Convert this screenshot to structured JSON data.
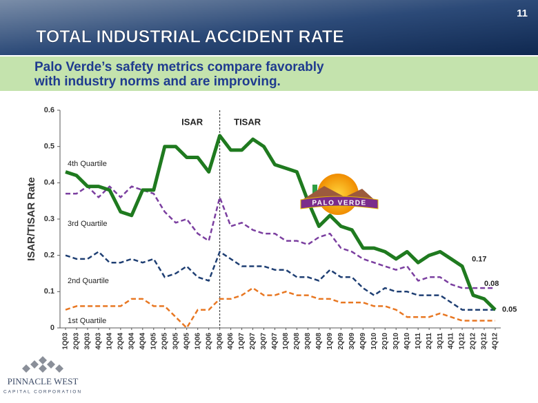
{
  "slide": {
    "number": "11",
    "title": "TOTAL INDUSTRIAL ACCIDENT RATE",
    "subtitle": [
      "Palo Verde’s safety metrics compare favorably",
      "with industry norms and are improving."
    ],
    "logo_center": "PALO VERDE",
    "logo_company": "PINNACLE WEST",
    "logo_company_sub": "CAPITAL CORPORATION"
  },
  "chart_data": {
    "type": "line",
    "y_label": "ISAR/TISAR Rate",
    "annotations": [
      "ISAR",
      "TISAR"
    ],
    "categories": [
      "1Q03",
      "2Q03",
      "3Q03",
      "4Q03",
      "1Q04",
      "2Q04",
      "3Q04",
      "4Q04",
      "1Q05",
      "2Q05",
      "3Q05",
      "4Q05",
      "1Q06",
      "2Q06",
      "3Q06",
      "4Q06",
      "1Q07",
      "2Q07",
      "3Q07",
      "4Q07",
      "1Q08",
      "2Q08",
      "3Q08",
      "4Q08",
      "1Q09",
      "2Q09",
      "3Q09",
      "4Q09",
      "1Q10",
      "2Q10",
      "3Q10",
      "4Q10",
      "1Q11",
      "2Q11",
      "3Q11",
      "4Q11",
      "1Q12",
      "2Q12",
      "3Q12",
      "4Q12"
    ],
    "series": [
      {
        "name": "Palo Verde",
        "color": "#1f7a1f",
        "values": [
          0.43,
          0.42,
          0.39,
          0.39,
          0.38,
          0.32,
          0.31,
          0.38,
          0.38,
          0.5,
          0.5,
          0.47,
          0.47,
          0.43,
          0.53,
          0.49,
          0.49,
          0.52,
          0.5,
          0.45,
          0.44,
          0.43,
          0.35,
          0.28,
          0.31,
          0.28,
          0.27,
          0.22,
          0.22,
          0.21,
          0.19,
          0.21,
          0.18,
          0.2,
          0.21,
          0.19,
          0.17,
          0.09,
          0.08,
          0.05
        ]
      },
      {
        "name": "4th Quartile",
        "color": "#7b3fa0",
        "values": [
          0.37,
          0.37,
          0.39,
          0.36,
          0.39,
          0.36,
          0.39,
          0.38,
          0.37,
          0.32,
          0.29,
          0.3,
          0.26,
          0.24,
          0.36,
          0.28,
          0.29,
          0.27,
          0.26,
          0.26,
          0.24,
          0.24,
          0.23,
          0.25,
          0.26,
          0.22,
          0.21,
          0.19,
          0.18,
          0.17,
          0.16,
          0.17,
          0.13,
          0.14,
          0.14,
          0.12,
          0.11,
          0.11,
          0.11,
          0.11
        ]
      },
      {
        "name": "3rd Quartile",
        "color": "#1f3f73",
        "values": [
          0.2,
          0.19,
          0.19,
          0.21,
          0.18,
          0.18,
          0.19,
          0.18,
          0.19,
          0.14,
          0.15,
          0.17,
          0.14,
          0.13,
          0.21,
          0.19,
          0.17,
          0.17,
          0.17,
          0.16,
          0.16,
          0.14,
          0.14,
          0.13,
          0.16,
          0.14,
          0.14,
          0.11,
          0.09,
          0.11,
          0.1,
          0.1,
          0.09,
          0.09,
          0.09,
          0.07,
          0.05,
          0.05,
          0.05,
          0.05
        ]
      },
      {
        "name": "2nd Quartile",
        "color": "#e87722",
        "values": [
          0.05,
          0.06,
          0.06,
          0.06,
          0.06,
          0.06,
          0.08,
          0.08,
          0.06,
          0.06,
          0.03,
          0.0,
          0.05,
          0.05,
          0.08,
          0.08,
          0.09,
          0.11,
          0.09,
          0.09,
          0.1,
          0.09,
          0.09,
          0.08,
          0.08,
          0.07,
          0.07,
          0.07,
          0.06,
          0.06,
          0.05,
          0.03,
          0.03,
          0.03,
          0.04,
          0.03,
          0.02,
          0.02,
          0.02,
          0.02
        ]
      }
    ],
    "quartile_labels": [
      "4th Quartile",
      "3rd Quartile",
      "2nd Quartile",
      "1st Quartile"
    ],
    "ylim": [
      0,
      0.6
    ],
    "yticks": [
      0,
      0.1,
      0.2,
      0.3,
      0.4,
      0.5,
      0.6
    ],
    "grid": false
  }
}
